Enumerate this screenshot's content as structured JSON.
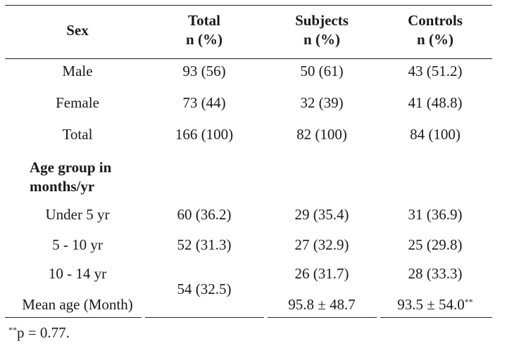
{
  "table": {
    "header": {
      "col1": "Sex",
      "col2_line1": "Total",
      "col2_line2": "n (%)",
      "col3_line1": "Subjects",
      "col3_line2": "n (%)",
      "col4_line1": "Controls",
      "col4_line2": "n (%)"
    },
    "rows": [
      {
        "label": "Male",
        "total": "93 (56)",
        "subjects": "50 (61)",
        "controls": "43 (51.2)"
      },
      {
        "label": "Female",
        "total": "73 (44)",
        "subjects": "32 (39)",
        "controls": "41 (48.8)"
      },
      {
        "label": "Total",
        "total": "166 (100)",
        "subjects": "82 (100)",
        "controls": "84 (100)"
      }
    ],
    "section_header_line1": "Age group in",
    "section_header_line2": "months/yr",
    "age_rows": [
      {
        "label": "Under 5 yr",
        "total": "60 (36.2)",
        "subjects": "29 (35.4)",
        "controls": "31 (36.9)"
      },
      {
        "label": "5 - 10 yr",
        "total": "52 (31.3)",
        "subjects": "27 (32.9)",
        "controls": "25 (29.8)"
      },
      {
        "label": "10 - 14 yr",
        "total": "54 (32.5)",
        "subjects": "26 (31.7)",
        "controls": "28 (33.3)"
      },
      {
        "label": "Mean age (Month)",
        "total": "",
        "subjects": "95.8 ± 48.7",
        "controls": "93.5 ± 54.0"
      }
    ],
    "controls_mean_marker": "**"
  },
  "footnote": {
    "marker": "**",
    "text": "p = 0.77."
  }
}
